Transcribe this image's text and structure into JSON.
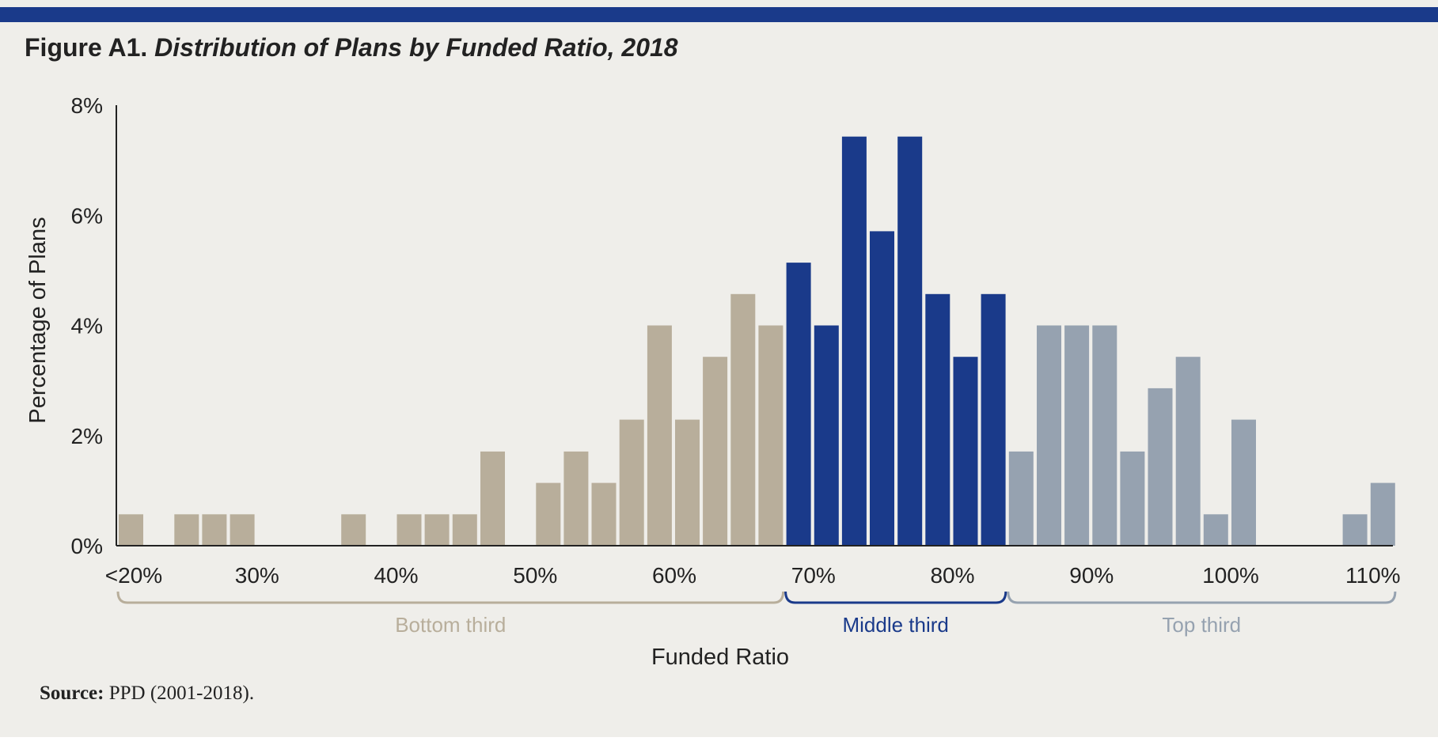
{
  "figure": {
    "label": "Figure A1.",
    "caption": "Distribution of Plans by Funded Ratio, 2018",
    "source_label": "Source:",
    "source_text": " PPD (2001-2018)."
  },
  "colors": {
    "bottom_third": "#b8ae9b",
    "middle_third": "#1a3a8a",
    "top_third": "#96a2b0",
    "header_rule": "#1a3a8a",
    "background": "#efeeea"
  },
  "chart_data": {
    "type": "bar",
    "title": "Distribution of Plans by Funded Ratio, 2018",
    "xlabel": "Funded Ratio",
    "ylabel": "Percentage of Plans",
    "ylim": [
      0,
      8
    ],
    "yticks": [
      "0%",
      "2%",
      "4%",
      "6%",
      "8%"
    ],
    "xticks": [
      "<20%",
      "30%",
      "40%",
      "50%",
      "60%",
      "70%",
      "80%",
      "90%",
      "100%",
      "110%"
    ],
    "bin_width": 2,
    "x_start": 20,
    "grid": false,
    "groups": [
      {
        "name": "Bottom third",
        "color": "#b8ae9b",
        "start_bin": 0,
        "end_bin": 23
      },
      {
        "name": "Middle third",
        "color": "#1a3a8a",
        "start_bin": 24,
        "end_bin": 31
      },
      {
        "name": "Top third",
        "color": "#96a2b0",
        "start_bin": 32,
        "end_bin": 45
      }
    ],
    "bins": [
      "<20%",
      "20-22%",
      "22-24%",
      "24-26%",
      "26-28%",
      "28-30%",
      "30-32%",
      "32-34%",
      "34-36%",
      "36-38%",
      "38-40%",
      "40-42%",
      "42-44%",
      "44-46%",
      "46-48%",
      "48-50%",
      "50-52%",
      "52-54%",
      "54-56%",
      "56-58%",
      "58-60%",
      "60-62%",
      "62-64%",
      "64-66%",
      "66-68%",
      "68-70%",
      "70-72%",
      "72-74%",
      "74-76%",
      "76-78%",
      "78-80%",
      "80-82%",
      "82-84%",
      "84-86%",
      "86-88%",
      "88-90%",
      "90-92%",
      "92-94%",
      "94-96%",
      "96-98%",
      "98-100%",
      "100-102%",
      "102-104%",
      "104-106%",
      "106-108%",
      "108-110%"
    ],
    "values": [
      0.57,
      0,
      0.57,
      0.57,
      0.57,
      0,
      0,
      0,
      0.57,
      0,
      0.57,
      0.57,
      0.57,
      1.71,
      0,
      1.14,
      1.71,
      1.14,
      2.29,
      4.0,
      2.29,
      3.43,
      4.57,
      4.0,
      5.14,
      4.0,
      7.43,
      5.71,
      7.43,
      4.57,
      3.43,
      4.57,
      1.71,
      4.0,
      4.0,
      4.0,
      1.71,
      2.86,
      3.43,
      0.57,
      2.29,
      0,
      0,
      0,
      0.57,
      1.14
    ]
  }
}
